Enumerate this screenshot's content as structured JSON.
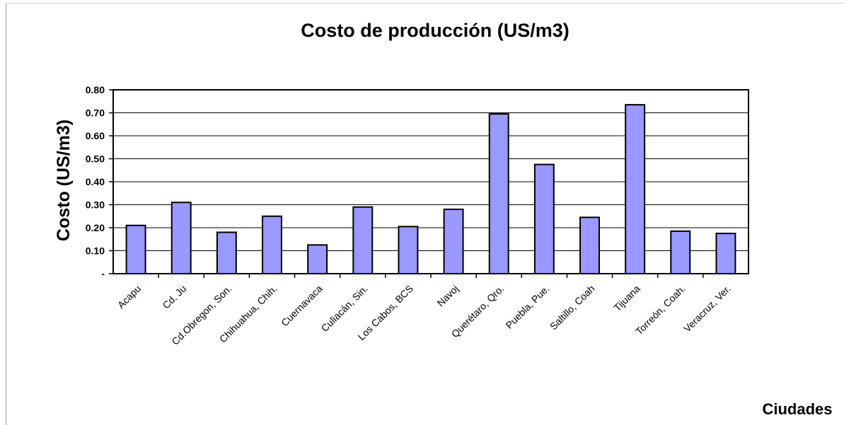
{
  "chart_data": {
    "type": "bar",
    "title": "Costo de producción (US/m3)",
    "xlabel": "Ciudades",
    "ylabel": "Costo (US/m3)",
    "categories": [
      "Acapu",
      "Cd. Ju",
      "Cd.Obregon, Son.",
      "Chihuahua, Chih.",
      "Cuernavaca",
      "Culiacán, Sin.",
      "Los Cabos, BCS",
      "Navoj",
      "Querétaro, Qro.",
      "Puebla, Pue.",
      "Saltillo, Coah",
      "Tijuana",
      "Torreón, Coah.",
      "Veracruz, Ver."
    ],
    "values": [
      0.21,
      0.31,
      0.18,
      0.25,
      0.125,
      0.29,
      0.205,
      0.28,
      0.695,
      0.475,
      0.245,
      0.735,
      0.185,
      0.175
    ],
    "ylim": [
      0,
      0.8
    ],
    "yticks": [
      0,
      0.1,
      0.2,
      0.3,
      0.4,
      0.5,
      0.6,
      0.7,
      0.8
    ],
    "ytick_labels": [
      "-",
      "0.10",
      "0.20",
      "0.30",
      "0.40",
      "0.50",
      "0.60",
      "0.70",
      "0.80"
    ],
    "grid": true,
    "legend": "none",
    "bar_color": "#9999ff",
    "bar_edge_color": "#000000"
  }
}
